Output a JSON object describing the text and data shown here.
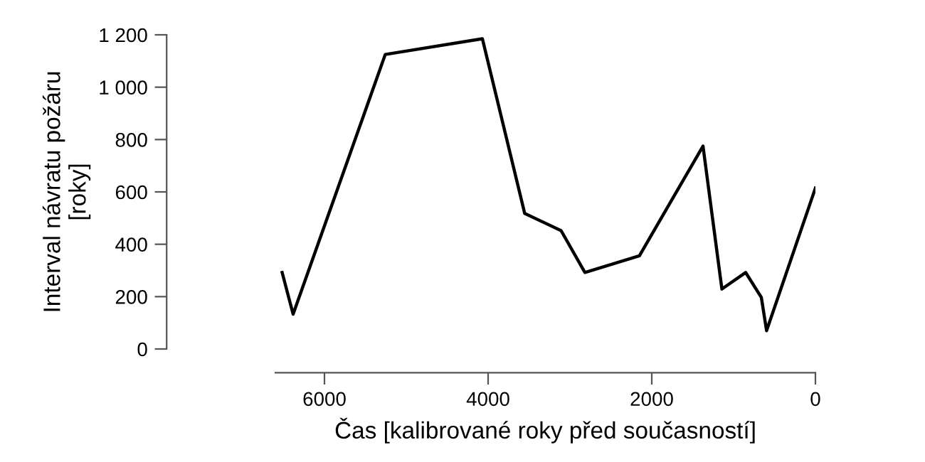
{
  "chart_data": {
    "type": "line",
    "xlabel": "Čas [kalibrované roky před současností]",
    "ylabel": "Interval návratu požáru\n[roky]",
    "x": [
      6517,
      6383,
      5257,
      4070,
      3553,
      3108,
      2817,
      2151,
      1374,
      1143,
      852,
      661,
      597,
      0
    ],
    "series": [
      {
        "color": "#000000",
        "values": [
          292,
          133,
          1125,
          1185,
          518,
          452,
          292,
          356,
          775,
          229,
          292,
          197,
          70,
          615
        ]
      }
    ],
    "xlim": [
      6600,
      0
    ],
    "ylim": [
      0,
      1200
    ],
    "xticks": [
      6000,
      4000,
      2000,
      0
    ],
    "yticks": [
      0,
      200,
      400,
      600,
      800,
      {
        "value": 1000,
        "label": "1 000"
      },
      {
        "value": 1200,
        "label": "1 200"
      }
    ],
    "grid": false,
    "legend": false,
    "marker": "none",
    "line_style": "solid"
  }
}
